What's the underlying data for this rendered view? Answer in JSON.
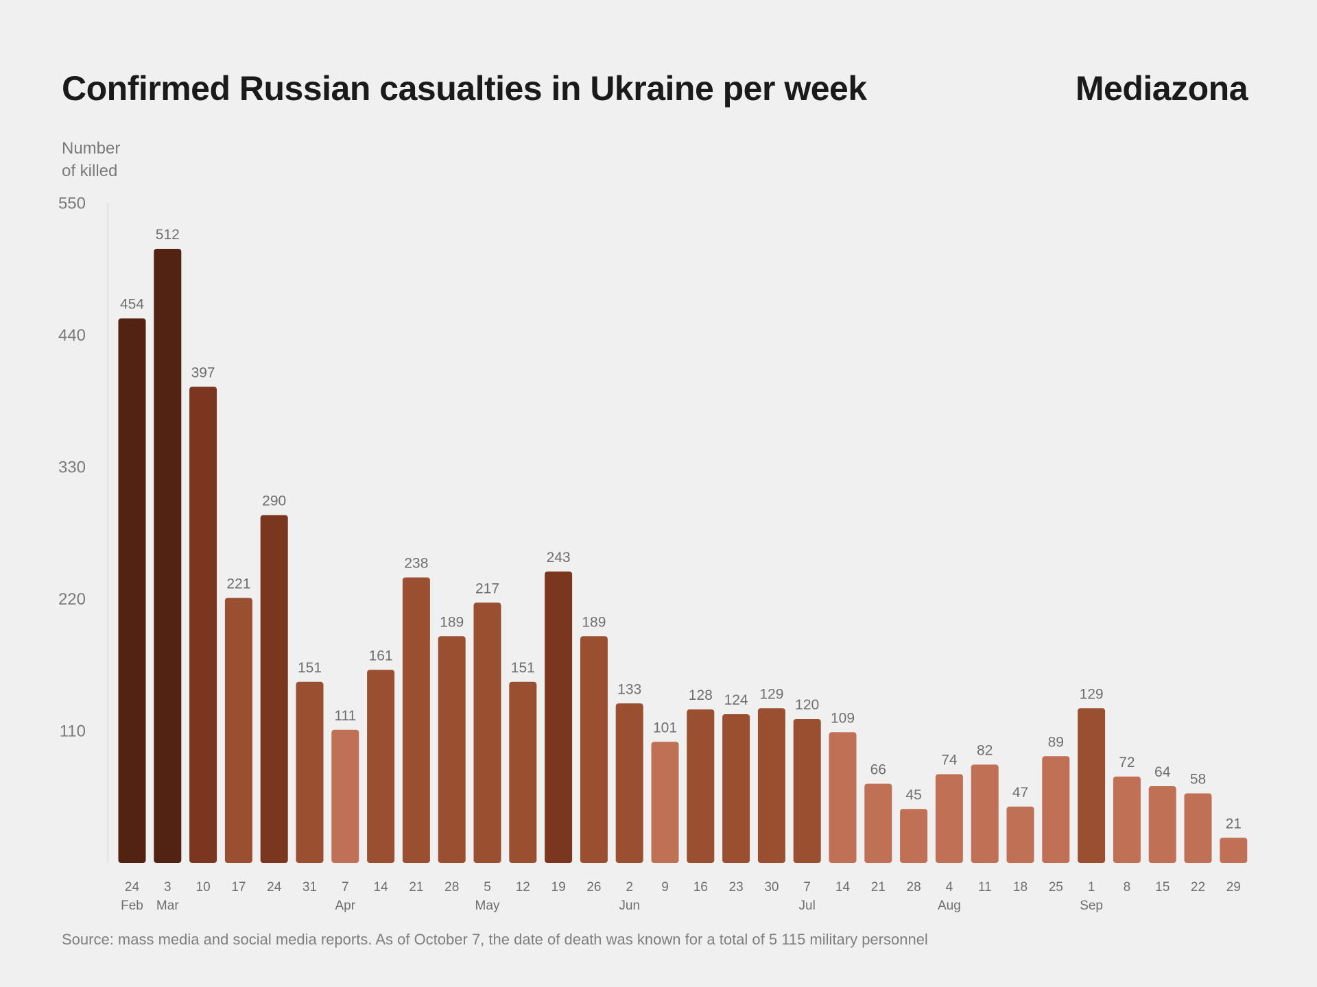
{
  "title": "Confirmed Russian casualties in Ukraine per week",
  "brand": "Mediazona",
  "ylabel_lines": [
    "Number",
    "of killed"
  ],
  "source": "Source: mass media and social media reports. As of October 7, the date of death was known for a total of 5 115 military personnel",
  "chart_data": {
    "type": "bar",
    "title": "Confirmed Russian casualties in Ukraine per week",
    "ylabel": "Number of killed",
    "ylim": [
      0,
      550
    ],
    "yticks": [
      110,
      220,
      330,
      440,
      550
    ],
    "grid": false,
    "categories": [
      "24 Feb",
      "3 Mar",
      "10",
      "17",
      "24",
      "31",
      "7 Apr",
      "14",
      "21",
      "28",
      "5 May",
      "12",
      "19",
      "26",
      "2 Jun",
      "9",
      "16",
      "23",
      "30",
      "7 Jul",
      "14",
      "21",
      "28",
      "4 Aug",
      "11",
      "18",
      "25",
      "1 Sep",
      "8",
      "15",
      "22",
      "29"
    ],
    "tick_top": [
      "24",
      "3",
      "10",
      "17",
      "24",
      "31",
      "7",
      "14",
      "21",
      "28",
      "5",
      "12",
      "19",
      "26",
      "2",
      "9",
      "16",
      "23",
      "30",
      "7",
      "14",
      "21",
      "28",
      "4",
      "11",
      "18",
      "25",
      "1",
      "8",
      "15",
      "22",
      "29"
    ],
    "tick_bottom": [
      "Feb",
      "Mar",
      "",
      "",
      "",
      "",
      "Apr",
      "",
      "",
      "",
      "May",
      "",
      "",
      "",
      "Jun",
      "",
      "",
      "",
      "",
      "Jul",
      "",
      "",
      "",
      "Aug",
      "",
      "",
      "",
      "Sep",
      "",
      "",
      "",
      ""
    ],
    "values": [
      454,
      512,
      397,
      221,
      290,
      151,
      111,
      161,
      238,
      189,
      217,
      151,
      243,
      189,
      133,
      101,
      128,
      124,
      129,
      120,
      109,
      66,
      45,
      74,
      82,
      47,
      89,
      129,
      72,
      64,
      58,
      21
    ],
    "color_scale": [
      {
        "min": 450,
        "color": "#522213"
      },
      {
        "min": 240,
        "color": "#7a361e"
      },
      {
        "min": 120,
        "color": "#9b4f31"
      },
      {
        "min": 0,
        "color": "#c07054"
      }
    ]
  }
}
